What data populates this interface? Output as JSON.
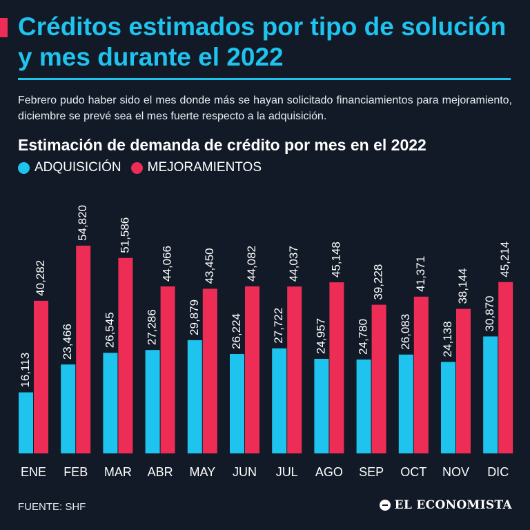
{
  "header": {
    "title": "Créditos estimados por tipo de solución y mes durante el 2022",
    "subtitle": "Febrero pudo haber sido el mes donde más se hayan solicitado financiamientos para mejoramiento, diciembre se prevé sea el mes fuerte respecto a la adquisición."
  },
  "colors": {
    "background": "#121a27",
    "accent_blue": "#1ec3ee",
    "accent_red": "#ee2d56"
  },
  "chart_data": {
    "type": "bar",
    "title": "Estimación de demanda de crédito por mes en el 2022",
    "categories": [
      "ENE",
      "FEB",
      "MAR",
      "ABR",
      "MAY",
      "JUN",
      "JUL",
      "AGO",
      "SEP",
      "OCT",
      "NOV",
      "DIC"
    ],
    "series": [
      {
        "name": "ADQUISICIÓN",
        "color": "#1ec3ee",
        "values": [
          16113,
          23466,
          26545,
          27286,
          29879,
          26224,
          27722,
          24957,
          24780,
          26083,
          24138,
          30870
        ],
        "labels": [
          "16,113",
          "23,466",
          "26,545",
          "27,286",
          "29,879",
          "26,224",
          "27,722",
          "24,957",
          "24,780",
          "26,083",
          "24,138",
          "30,870"
        ]
      },
      {
        "name": "MEJORAMIENTOS",
        "color": "#ee2d56",
        "values": [
          40282,
          54820,
          51586,
          44066,
          43450,
          44082,
          44037,
          45148,
          39228,
          41371,
          38144,
          45214
        ],
        "labels": [
          "40,282",
          "54,820",
          "51,586",
          "44,066",
          "43,450",
          "44,082",
          "44,037",
          "45,148",
          "39,228",
          "41,371",
          "38,144",
          "45,214"
        ]
      }
    ],
    "xlabel": "",
    "ylabel": "",
    "ylim": [
      0,
      55000
    ]
  },
  "footer": {
    "source": "FUENTE: SHF",
    "brand": "EL ECONOMISTA"
  }
}
